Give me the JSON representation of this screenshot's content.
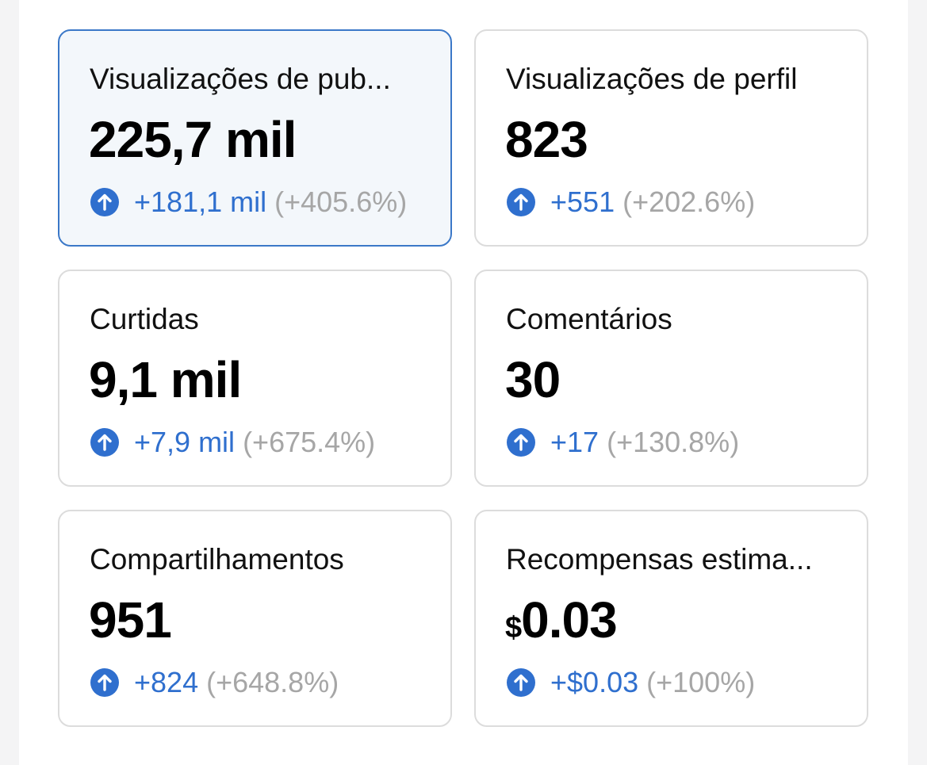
{
  "cards": [
    {
      "label": "Visualizações de pub...",
      "value": "225,7 mil",
      "change": "+181,1 mil",
      "percent": "(+405.6%)"
    },
    {
      "label": "Visualizações de perfil",
      "value": "823",
      "change": "+551",
      "percent": "(+202.6%)"
    },
    {
      "label": "Curtidas",
      "value": "9,1 mil",
      "change": "+7,9 mil",
      "percent": "(+675.4%)"
    },
    {
      "label": "Comentários",
      "value": "30",
      "change": "+17",
      "percent": "(+130.8%)"
    },
    {
      "label": "Compartilhamentos",
      "value": "951",
      "change": "+824",
      "percent": "(+648.8%)"
    },
    {
      "label": "Recompensas estima...",
      "value_prefix": "$",
      "value": "0.03",
      "change": "+$0.03",
      "percent": "(+100%)"
    }
  ]
}
